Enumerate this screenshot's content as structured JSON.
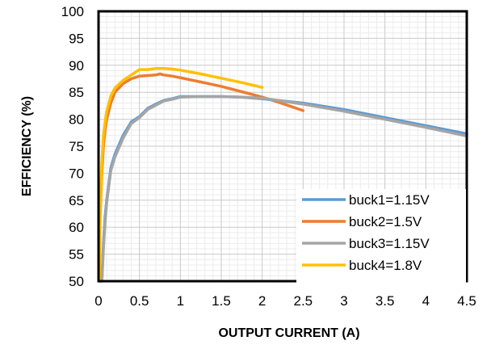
{
  "chart_data": {
    "type": "line",
    "xlabel": "OUTPUT  CURRENT  (A)",
    "ylabel": "EFFICIENCY  (%)",
    "xlim": [
      0,
      4.5
    ],
    "ylim": [
      50,
      100
    ],
    "x_major_ticks": [
      "0",
      "0.5",
      "1",
      "1.5",
      "2",
      "2.5",
      "3",
      "3.5",
      "4",
      "4.5"
    ],
    "y_major_ticks": [
      "50",
      "55",
      "60",
      "65",
      "70",
      "75",
      "80",
      "85",
      "90",
      "95",
      "100"
    ],
    "x_minor_step": 0.1,
    "y_minor_step": 1,
    "grid": true,
    "legend_position": "bottom-right",
    "series": [
      {
        "name": "buck1=1.15V",
        "color": "#5B9BD5",
        "x": [
          0.02,
          0.04,
          0.06,
          0.08,
          0.1,
          0.15,
          0.2,
          0.3,
          0.4,
          0.5,
          0.6,
          0.7,
          0.8,
          0.9,
          1.0,
          1.25,
          1.5,
          1.75,
          2.0,
          2.5,
          3.0,
          3.5,
          4.0,
          4.5
        ],
        "y": [
          50,
          50,
          57,
          62,
          65,
          71,
          73.5,
          77,
          79.5,
          80.5,
          82,
          82.8,
          83.5,
          83.8,
          84.2,
          84.2,
          84.2,
          84.1,
          83.8,
          83.0,
          81.8,
          80.3,
          78.8,
          77.3
        ]
      },
      {
        "name": "buck2=1.5V",
        "color": "#ED7D31",
        "x": [
          0.01,
          0.02,
          0.04,
          0.06,
          0.08,
          0.1,
          0.15,
          0.2,
          0.3,
          0.4,
          0.5,
          0.6,
          0.7,
          0.75,
          0.8,
          0.9,
          1.0,
          1.25,
          1.5,
          1.75,
          2.0,
          2.25,
          2.5
        ],
        "y": [
          50,
          62,
          70,
          75,
          78,
          80,
          83,
          85,
          86.6,
          87.5,
          88,
          88.1,
          88.2,
          88.4,
          88.2,
          88,
          87.7,
          86.9,
          86.1,
          85.1,
          84.1,
          82.9,
          81.6
        ]
      },
      {
        "name": "buck3=1.15V",
        "color": "#A5A5A5",
        "x": [
          0.02,
          0.04,
          0.06,
          0.08,
          0.1,
          0.15,
          0.2,
          0.3,
          0.4,
          0.5,
          0.6,
          0.7,
          0.8,
          0.9,
          1.0,
          1.25,
          1.5,
          1.75,
          2.0,
          2.5,
          3.0,
          3.5,
          4.0,
          4.5
        ],
        "y": [
          50,
          50,
          56,
          61,
          64.5,
          70.5,
          73,
          76.5,
          79.2,
          80.3,
          81.8,
          82.6,
          83.4,
          83.7,
          84.1,
          84.2,
          84.2,
          84.1,
          83.9,
          82.8,
          81.5,
          80.0,
          78.5,
          76.9
        ]
      },
      {
        "name": "buck4=1.8V",
        "color": "#FFC000",
        "x": [
          0.01,
          0.02,
          0.04,
          0.06,
          0.08,
          0.1,
          0.15,
          0.2,
          0.3,
          0.4,
          0.5,
          0.6,
          0.7,
          0.8,
          0.9,
          1.0,
          1.25,
          1.5,
          1.75,
          2.0
        ],
        "y": [
          50,
          63,
          72,
          77,
          79.5,
          81.5,
          84.3,
          85.8,
          87.2,
          88.2,
          89.2,
          89.2,
          89.4,
          89.4,
          89.3,
          89.1,
          88.4,
          87.6,
          86.8,
          85.9
        ]
      }
    ]
  }
}
